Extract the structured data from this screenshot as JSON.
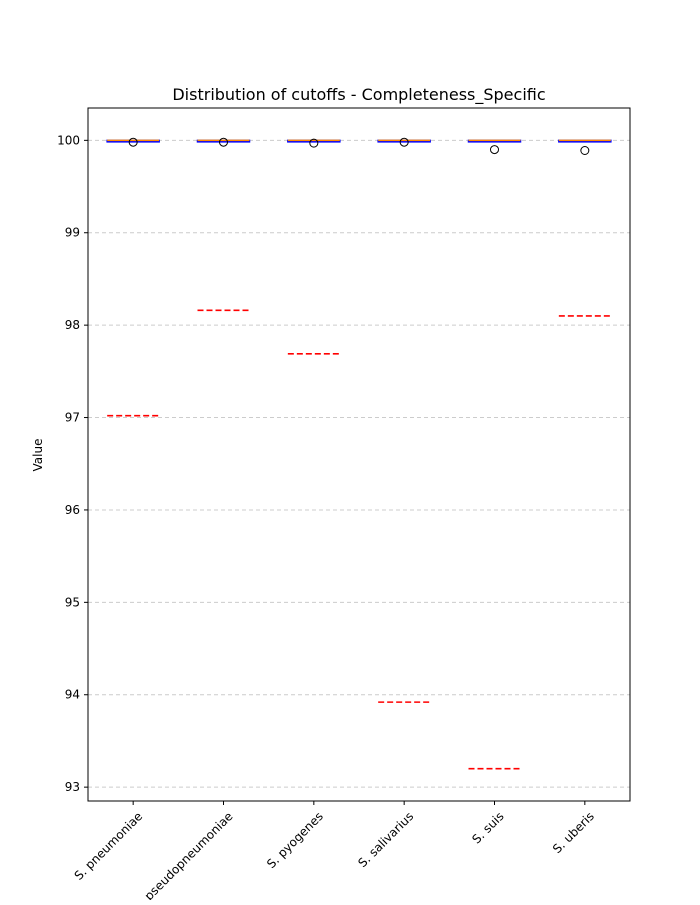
{
  "chart_data": {
    "type": "box",
    "title": "Distribution of cutoffs - Completeness_Specific",
    "xlabel": "",
    "ylabel": "Value",
    "ylim": [
      92.85,
      100.35
    ],
    "yticks": [
      93,
      94,
      95,
      96,
      97,
      98,
      99,
      100
    ],
    "categories": [
      "S. pneumoniae",
      "S. pseudopneumoniae",
      "S. pyogenes",
      "S. salivarius",
      "S. suis",
      "S. uberis"
    ],
    "boxes": [
      {
        "q1": 99.99,
        "median": 100.0,
        "q3": 100.0,
        "whisker_low": 99.99,
        "whisker_high": 100.0,
        "outliers": [
          99.98
        ],
        "cutoff": 97.02
      },
      {
        "q1": 99.99,
        "median": 100.0,
        "q3": 100.0,
        "whisker_low": 99.99,
        "whisker_high": 100.0,
        "outliers": [
          99.98
        ],
        "cutoff": 98.16
      },
      {
        "q1": 99.99,
        "median": 100.0,
        "q3": 100.0,
        "whisker_low": 99.99,
        "whisker_high": 100.0,
        "outliers": [
          99.97
        ],
        "cutoff": 97.69
      },
      {
        "q1": 99.99,
        "median": 100.0,
        "q3": 100.0,
        "whisker_low": 99.99,
        "whisker_high": 100.0,
        "outliers": [
          99.98
        ],
        "cutoff": 93.92
      },
      {
        "q1": 99.99,
        "median": 100.0,
        "q3": 100.0,
        "whisker_low": 99.99,
        "whisker_high": 100.0,
        "outliers": [
          99.9
        ],
        "cutoff": 93.2
      },
      {
        "q1": 99.99,
        "median": 100.0,
        "q3": 100.0,
        "whisker_low": 99.99,
        "whisker_high": 100.0,
        "outliers": [
          99.89
        ],
        "cutoff": 98.1
      }
    ],
    "grid": {
      "y": true,
      "x": false
    },
    "colors": {
      "box_edge": "#0000ff",
      "median": "#ff8c00",
      "cutoff": "#ff0000",
      "grid": "#cccccc",
      "outlier": "#000000"
    }
  }
}
